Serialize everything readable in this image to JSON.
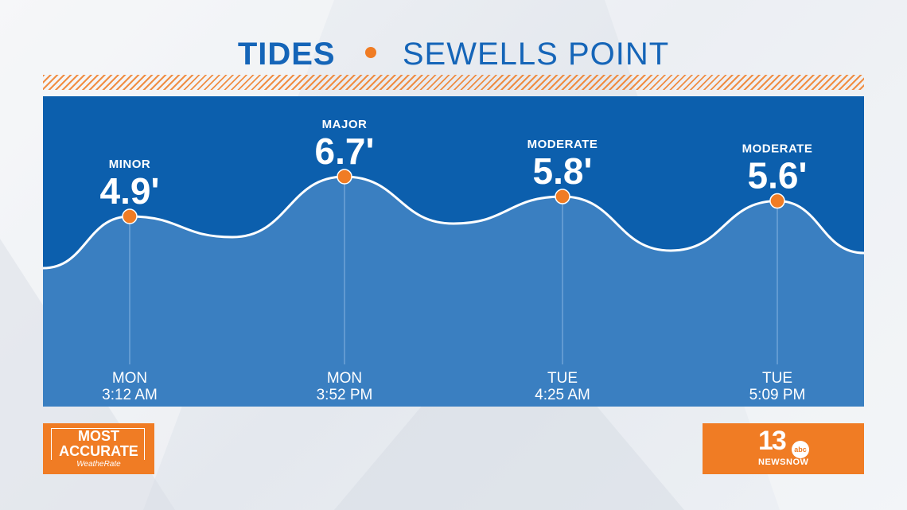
{
  "title": {
    "main": "TIDES",
    "sub": "SEWELLS POINT"
  },
  "colors": {
    "panel": "#0c5fad",
    "fill": "#3a7fc1",
    "line": "#ffffff",
    "marker": "#f07c24",
    "title": "#1565b8",
    "accent": "#f07c24"
  },
  "chart_data": {
    "type": "line",
    "title": "TIDES • SEWELLS POINT",
    "xlabel": "",
    "ylabel": "",
    "grid": false,
    "legend": "none",
    "units": "feet",
    "points": [
      {
        "category": "MINOR",
        "value": 4.9,
        "label": "4.9'",
        "day": "MON",
        "time": "3:12 AM"
      },
      {
        "category": "MAJOR",
        "value": 6.7,
        "label": "6.7'",
        "day": "MON",
        "time": "3:52 PM"
      },
      {
        "category": "MODERATE",
        "value": 5.8,
        "label": "5.8'",
        "day": "TUE",
        "time": "4:25 AM"
      },
      {
        "category": "MODERATE",
        "value": 5.6,
        "label": "5.6'",
        "day": "TUE",
        "time": "5:09 PM"
      }
    ]
  },
  "badges": {
    "left": {
      "line1": "MOST",
      "line2": "ACCURATE",
      "line3": "WeatheRate"
    },
    "right": {
      "number": "13",
      "network_icon": "abc-logo-icon",
      "network_text": "abc",
      "brand": "NEWSNOW"
    }
  }
}
